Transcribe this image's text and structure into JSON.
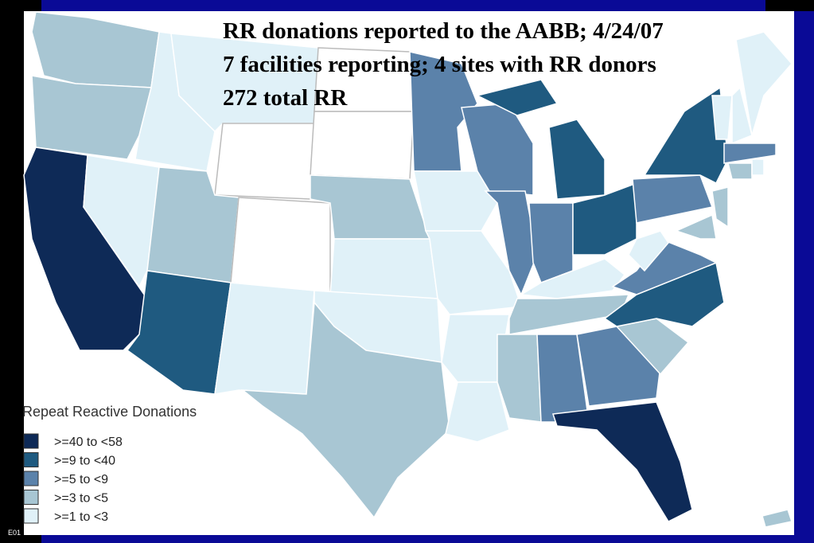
{
  "title_lines": [
    "RR donations reported to the AABB; 4/24/07",
    "7 facilities reporting; 4 sites with RR donors",
    "272 total RR"
  ],
  "legend": {
    "title": "Repeat Reactive Donations",
    "items": [
      {
        "label": ">=40 to <58",
        "color": "#0e2a57"
      },
      {
        "label": ">=9  to <40",
        "color": "#1f5a80"
      },
      {
        "label": ">=5  to <9",
        "color": "#5b82aa"
      },
      {
        "label": ">=3  to <5",
        "color": "#a8c6d3"
      },
      {
        "label": ">=1  to <3",
        "color": "#e0f1f8"
      }
    ]
  },
  "footer": "E01"
}
